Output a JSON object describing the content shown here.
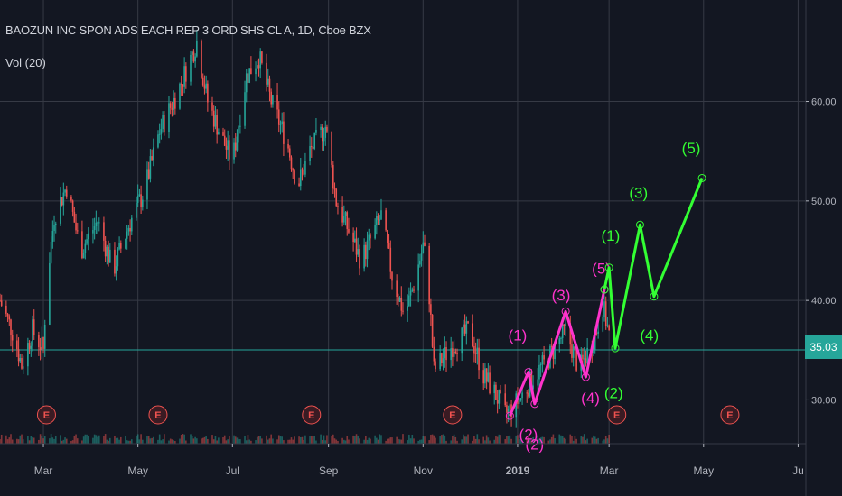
{
  "header": {
    "title": "BAOZUN INC SPON ADS EACH REP 3 ORD SHS CL A, 1D, Cboe BZX",
    "indicator": "Vol (20)"
  },
  "colors": {
    "background": "#131722",
    "grid": "#363a45",
    "up": "#26a69a",
    "down": "#ef5350",
    "wave_magenta": "#ff33cc",
    "wave_green": "#33ff33",
    "wave_yellow": "#c8c864",
    "earnings": "#ef5350",
    "price_line": "#26a69a",
    "axis_text": "#b2b5be"
  },
  "chart_data": {
    "type": "candlestick",
    "title": "BAOZUN INC SPON ADS EACH REP 3 ORD SHS CL A, 1D, Cboe BZX",
    "x_range": [
      "2018-02-01",
      "2019-07-06"
    ],
    "ylim": [
      25.6,
      70.2
    ],
    "yticks": [
      30,
      40,
      50,
      60
    ],
    "ytick_labels": [
      "30.00",
      "40.00",
      "50.00",
      "60.00"
    ],
    "xticks": [
      {
        "date": "2018-03-01",
        "label": "Mar"
      },
      {
        "date": "2018-05-01",
        "label": "May"
      },
      {
        "date": "2018-07-01",
        "label": "Jul"
      },
      {
        "date": "2018-09-01",
        "label": "Sep"
      },
      {
        "date": "2018-11-01",
        "label": "Nov"
      },
      {
        "date": "2019-01-01",
        "label": "2019"
      },
      {
        "date": "2019-03-01",
        "label": "Mar"
      },
      {
        "date": "2019-05-01",
        "label": "May"
      },
      {
        "date": "2019-07-01",
        "label": "Ju"
      }
    ],
    "grid": true,
    "last_price": 35.03,
    "last_price_label": "35.03",
    "price_path": [
      [
        "2018-02-01",
        40.0
      ],
      [
        "2018-02-10",
        36.5
      ],
      [
        "2018-02-15",
        33.5
      ],
      [
        "2018-02-22",
        37.0
      ],
      [
        "2018-03-01",
        35.0
      ],
      [
        "2018-03-03",
        41.5
      ],
      [
        "2018-03-08",
        48.5
      ],
      [
        "2018-03-16",
        51.5
      ],
      [
        "2018-03-25",
        45.0
      ],
      [
        "2018-04-05",
        48.0
      ],
      [
        "2018-04-15",
        43.0
      ],
      [
        "2018-04-25",
        47.5
      ],
      [
        "2018-05-05",
        51.0
      ],
      [
        "2018-05-15",
        57.0
      ],
      [
        "2018-05-28",
        61.5
      ],
      [
        "2018-06-08",
        66.0
      ],
      [
        "2018-06-15",
        60.0
      ],
      [
        "2018-06-25",
        56.0
      ],
      [
        "2018-07-01",
        54.0
      ],
      [
        "2018-07-10",
        62.5
      ],
      [
        "2018-07-18",
        64.5
      ],
      [
        "2018-07-26",
        60.0
      ],
      [
        "2018-08-05",
        56.0
      ],
      [
        "2018-08-12",
        51.5
      ],
      [
        "2018-08-20",
        55.0
      ],
      [
        "2018-08-30",
        57.5
      ],
      [
        "2018-09-06",
        50.0
      ],
      [
        "2018-09-14",
        47.0
      ],
      [
        "2018-09-22",
        44.0
      ],
      [
        "2018-10-05",
        48.5
      ],
      [
        "2018-10-12",
        42.5
      ],
      [
        "2018-10-20",
        38.5
      ],
      [
        "2018-10-25",
        41.0
      ],
      [
        "2018-11-01",
        45.5
      ],
      [
        "2018-11-04",
        43.0
      ],
      [
        "2018-11-08",
        33.0
      ],
      [
        "2018-11-20",
        35.5
      ],
      [
        "2018-12-01",
        37.0
      ],
      [
        "2018-12-10",
        32.5
      ],
      [
        "2018-12-18",
        30.5
      ],
      [
        "2018-12-24",
        28.5
      ],
      [
        "2019-01-02",
        30.0
      ],
      [
        "2019-01-10",
        32.0
      ],
      [
        "2019-01-20",
        34.0
      ],
      [
        "2019-02-01",
        37.0
      ],
      [
        "2019-02-10",
        33.0
      ],
      [
        "2019-02-20",
        36.5
      ],
      [
        "2019-02-25",
        39.5
      ],
      [
        "2019-03-01",
        36.5
      ]
    ],
    "wave_minor": {
      "points": [
        [
          "2018-12-27",
          28.4
        ],
        [
          "2019-01-08",
          32.8
        ],
        [
          "2019-01-12",
          29.6
        ],
        [
          "2019-02-01",
          38.9
        ],
        [
          "2019-02-14",
          32.3
        ],
        [
          "2019-02-26",
          41.1
        ]
      ],
      "labels": [
        "(2)",
        "(1)",
        "(2)",
        "(3)",
        "(4)",
        "(5)"
      ],
      "label_dates": [
        "2019-01-08",
        "2019-01-01",
        "2019-01-12",
        "2019-01-29",
        "2019-02-17",
        "2019-02-24"
      ],
      "label_values": [
        26.0,
        36.0,
        25.0,
        40.0,
        29.7,
        42.7
      ]
    },
    "wave_intermediate": {
      "points": [
        [
          "2019-02-26",
          41.1
        ],
        [
          "2019-03-01",
          43.3
        ],
        [
          "2019-03-05",
          35.2
        ],
        [
          "2019-03-21",
          47.6
        ],
        [
          "2019-03-30",
          40.4
        ],
        [
          "2019-04-30",
          52.3
        ]
      ],
      "labels": [
        "(1)",
        "(2)",
        "(3)",
        "(4)",
        "(5)"
      ],
      "label_dates": [
        "2019-03-02",
        "2019-03-04",
        "2019-03-20",
        "2019-03-27",
        "2019-04-23"
      ],
      "label_values": [
        46.0,
        30.2,
        50.3,
        36.0,
        54.8
      ]
    },
    "earnings_markers": [
      {
        "date": "2018-03-03",
        "label": "E"
      },
      {
        "date": "2018-05-14",
        "label": "E"
      },
      {
        "date": "2018-08-21",
        "label": "E"
      },
      {
        "date": "2018-11-20",
        "label": "E"
      },
      {
        "date": "2019-03-06",
        "label": "E"
      },
      {
        "date": "2019-05-18",
        "label": "E"
      }
    ]
  }
}
